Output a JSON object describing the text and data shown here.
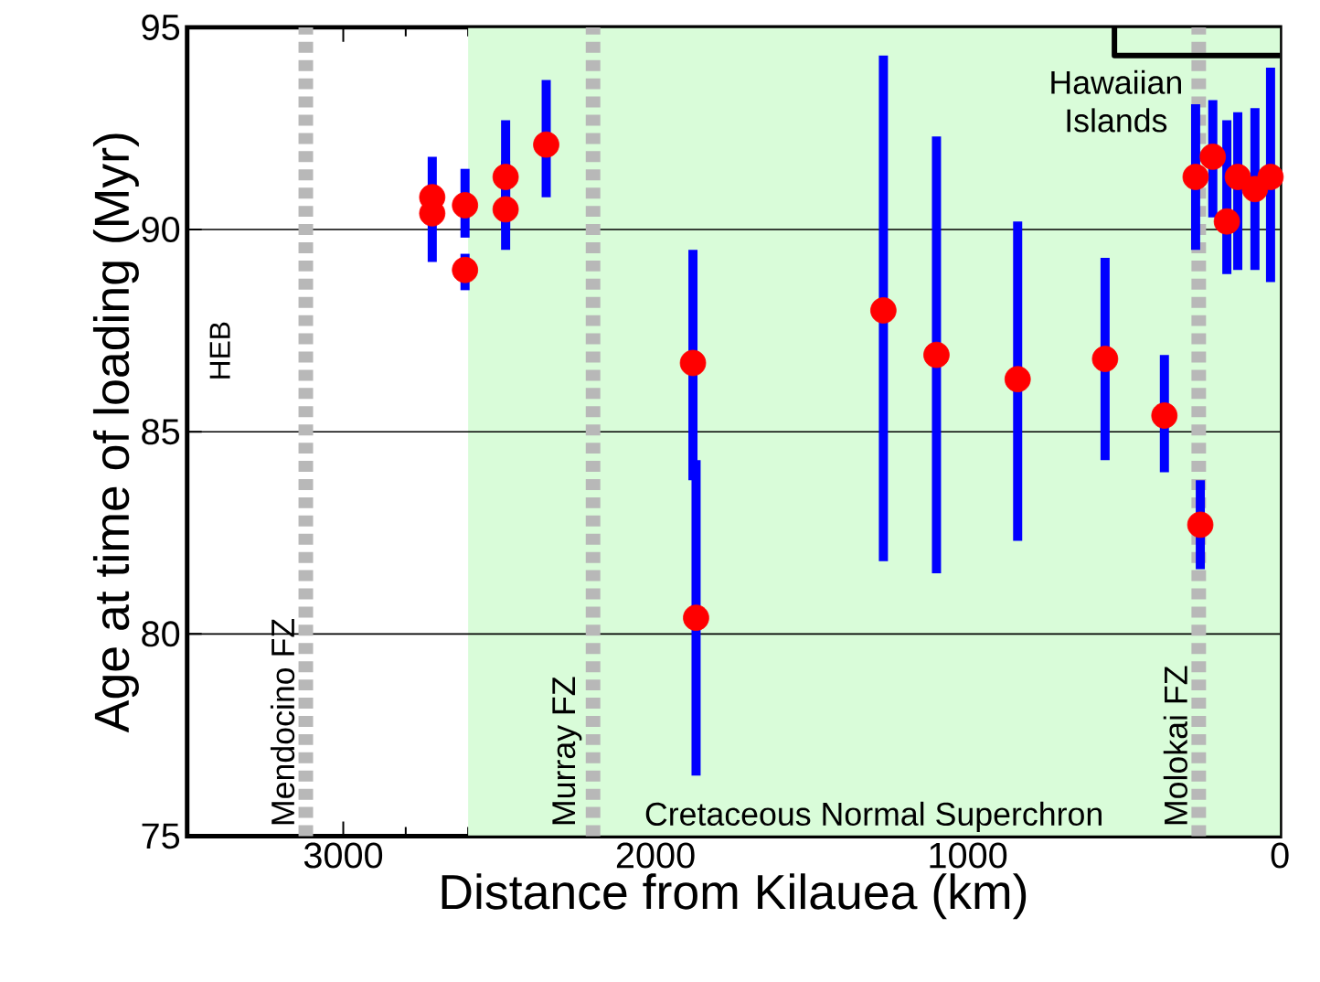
{
  "chart_data": {
    "type": "scatter",
    "xlabel": "Distance from Kilauea (km)",
    "ylabel": "Age at time of loading (Myr)",
    "series": [
      {
        "color": "#ff0000",
        "marker": "circle",
        "x": [
          2715,
          2715,
          2610,
          2610,
          2480,
          2480,
          2350,
          1880,
          1870,
          1270,
          1100,
          840,
          560,
          370,
          255,
          270,
          215,
          170,
          135,
          80,
          30
        ],
        "values": [
          90.8,
          90.4,
          90.6,
          89.0,
          91.3,
          90.5,
          92.1,
          86.7,
          80.4,
          88.0,
          86.9,
          86.3,
          86.8,
          85.4,
          82.7,
          91.3,
          91.8,
          90.2,
          91.3,
          91.0,
          91.3
        ],
        "errors": [
          [
            89.2,
            91.8
          ],
          null,
          [
            89.8,
            91.5
          ],
          [
            88.5,
            89.4
          ],
          [
            90.0,
            92.7
          ],
          [
            89.5,
            91.7
          ],
          [
            90.8,
            93.7
          ],
          [
            83.8,
            89.5
          ],
          [
            76.5,
            84.3
          ],
          [
            81.8,
            94.3
          ],
          [
            81.5,
            92.3
          ],
          [
            82.3,
            90.2
          ],
          [
            84.3,
            89.3
          ],
          [
            84.0,
            86.9
          ],
          [
            81.6,
            83.8
          ],
          [
            89.5,
            93.1
          ],
          [
            90.3,
            93.2
          ],
          [
            88.9,
            92.7
          ],
          [
            89.0,
            92.9
          ],
          [
            89.0,
            93.0
          ],
          [
            88.7,
            94.0
          ]
        ]
      },
      {
        "type": "line",
        "color": "#000000",
        "marker": "none",
        "x": [
          530,
          530,
          0
        ],
        "values": [
          95,
          94.3,
          94.3
        ]
      }
    ],
    "xlim": [
      3500,
      0
    ],
    "ylim": [
      75,
      95
    ],
    "xticks": [
      0,
      1000,
      2000,
      3000
    ],
    "yticks": [
      75,
      80,
      85,
      90,
      95
    ],
    "grid": "y",
    "ref_lines": [
      {
        "axis": "x",
        "value": 3120,
        "label": "Mendocino FZ",
        "color": "#b8b8b8",
        "line_style": "dashed"
      },
      {
        "axis": "x",
        "value": 2200,
        "label": "Murray FZ",
        "color": "#b8b8b8",
        "line_style": "dashed"
      },
      {
        "axis": "x",
        "value": 260,
        "label": "Molokai FZ",
        "color": "#b8b8b8",
        "line_style": "dashed"
      }
    ],
    "bands": [
      {
        "axis": "x",
        "from": 0,
        "to": 2600,
        "label": "Cretaceous Normal Superchron",
        "color": "#d9fcd9"
      }
    ],
    "annotations": [
      "HEB",
      "Hawaiian Islands"
    ]
  }
}
